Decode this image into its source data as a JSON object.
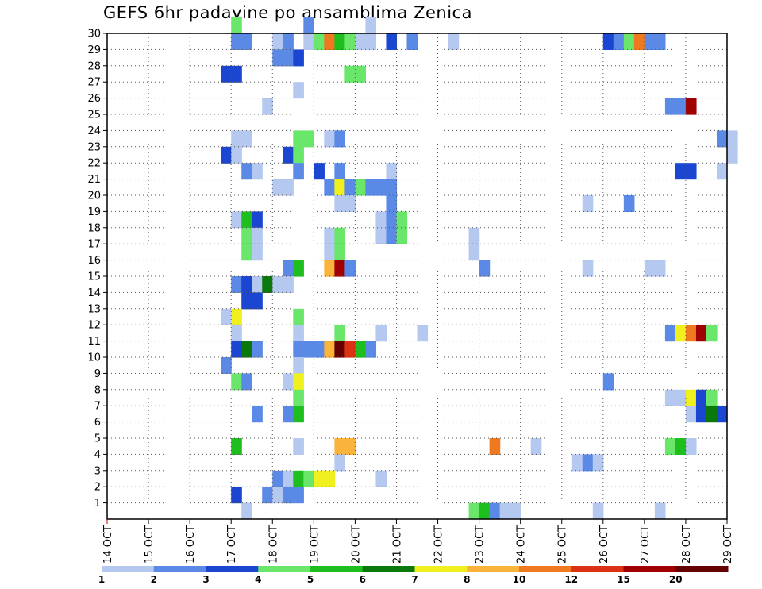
{
  "chart_data": {
    "type": "heatmap",
    "title": "GEFS 6hr padavine po ansamblima Zenica",
    "xlabel": "",
    "ylabel": "",
    "x_ticks": [
      "14 OCT",
      "15 OCT",
      "16 OCT",
      "17 OCT",
      "18 OCT",
      "19 OCT",
      "20 OCT",
      "21 OCT",
      "22 OCT",
      "23 OCT",
      "24 OCT",
      "25 OCT",
      "26 OCT",
      "27 OCT",
      "28 OCT",
      "29 OCT"
    ],
    "y_ticks": [
      "1",
      "2",
      "3",
      "4",
      "5",
      "6",
      "7",
      "8",
      "9",
      "10",
      "11",
      "12",
      "13",
      "14",
      "15",
      "16",
      "17",
      "18",
      "19",
      "20",
      "21",
      "22",
      "23",
      "24",
      "25",
      "26",
      "27",
      "28",
      "29",
      "30"
    ],
    "x_range_days": [
      0,
      15
    ],
    "y_range": [
      0,
      30
    ],
    "step_hours": 6,
    "grid": true,
    "colorbar": {
      "labels": [
        "1",
        "2",
        "3",
        "4",
        "5",
        "6",
        "7",
        "8",
        "10",
        "12",
        "15",
        "20"
      ],
      "colors": [
        "#b4c8f0",
        "#5a8ae6",
        "#1a46d2",
        "#6ae66a",
        "#1ebe1e",
        "#0a780a",
        "#f0f01e",
        "#fab43c",
        "#f0781e",
        "#dc3214",
        "#a00000",
        "#640000"
      ]
    },
    "cells": [
      {
        "m": 30,
        "t": 12,
        "c": 4
      },
      {
        "m": 30,
        "t": 19,
        "c": 2
      },
      {
        "m": 30,
        "t": 25,
        "c": 1
      },
      {
        "m": 29,
        "t": 12,
        "c": 2
      },
      {
        "m": 29,
        "t": 13,
        "c": 2
      },
      {
        "m": 29,
        "t": 16,
        "c": 1
      },
      {
        "m": 29,
        "t": 17,
        "c": 2
      },
      {
        "m": 29,
        "t": 19,
        "c": 1
      },
      {
        "m": 29,
        "t": 20,
        "c": 4
      },
      {
        "m": 29,
        "t": 21,
        "c": 9
      },
      {
        "m": 29,
        "t": 22,
        "c": 5
      },
      {
        "m": 29,
        "t": 23,
        "c": 4
      },
      {
        "m": 29,
        "t": 24,
        "c": 1
      },
      {
        "m": 29,
        "t": 25,
        "c": 1
      },
      {
        "m": 29,
        "t": 27,
        "c": 3
      },
      {
        "m": 29,
        "t": 29,
        "c": 2
      },
      {
        "m": 29,
        "t": 33,
        "c": 1
      },
      {
        "m": 29,
        "t": 48,
        "c": 3
      },
      {
        "m": 29,
        "t": 49,
        "c": 2
      },
      {
        "m": 29,
        "t": 50,
        "c": 4
      },
      {
        "m": 29,
        "t": 51,
        "c": 9
      },
      {
        "m": 29,
        "t": 52,
        "c": 2
      },
      {
        "m": 29,
        "t": 53,
        "c": 2
      },
      {
        "m": 28,
        "t": 16,
        "c": 2
      },
      {
        "m": 28,
        "t": 17,
        "c": 2
      },
      {
        "m": 28,
        "t": 18,
        "c": 3
      },
      {
        "m": 27,
        "t": 11,
        "c": 3
      },
      {
        "m": 27,
        "t": 12,
        "c": 3
      },
      {
        "m": 27,
        "t": 23,
        "c": 4
      },
      {
        "m": 27,
        "t": 24,
        "c": 4
      },
      {
        "m": 26,
        "t": 18,
        "c": 1
      },
      {
        "m": 25,
        "t": 15,
        "c": 1
      },
      {
        "m": 25,
        "t": 54,
        "c": 2
      },
      {
        "m": 25,
        "t": 55,
        "c": 2
      },
      {
        "m": 25,
        "t": 56,
        "c": 11
      },
      {
        "m": 23,
        "t": 12,
        "c": 1
      },
      {
        "m": 23,
        "t": 13,
        "c": 1
      },
      {
        "m": 23,
        "t": 18,
        "c": 4
      },
      {
        "m": 23,
        "t": 19,
        "c": 4
      },
      {
        "m": 23,
        "t": 21,
        "c": 1
      },
      {
        "m": 23,
        "t": 22,
        "c": 2
      },
      {
        "m": 23,
        "t": 59,
        "c": 2
      },
      {
        "m": 23,
        "t": 60,
        "c": 1
      },
      {
        "m": 22,
        "t": 11,
        "c": 3
      },
      {
        "m": 22,
        "t": 12,
        "c": 1
      },
      {
        "m": 22,
        "t": 17,
        "c": 3
      },
      {
        "m": 22,
        "t": 18,
        "c": 4
      },
      {
        "m": 22,
        "t": 60,
        "c": 1
      },
      {
        "m": 21,
        "t": 13,
        "c": 2
      },
      {
        "m": 21,
        "t": 14,
        "c": 1
      },
      {
        "m": 21,
        "t": 18,
        "c": 2
      },
      {
        "m": 21,
        "t": 20,
        "c": 3
      },
      {
        "m": 21,
        "t": 22,
        "c": 2
      },
      {
        "m": 21,
        "t": 27,
        "c": 1
      },
      {
        "m": 21,
        "t": 55,
        "c": 3
      },
      {
        "m": 21,
        "t": 56,
        "c": 3
      },
      {
        "m": 21,
        "t": 59,
        "c": 1
      },
      {
        "m": 20,
        "t": 16,
        "c": 1
      },
      {
        "m": 20,
        "t": 17,
        "c": 1
      },
      {
        "m": 20,
        "t": 21,
        "c": 2
      },
      {
        "m": 20,
        "t": 22,
        "c": 7
      },
      {
        "m": 20,
        "t": 23,
        "c": 2
      },
      {
        "m": 20,
        "t": 24,
        "c": 4
      },
      {
        "m": 20,
        "t": 25,
        "c": 2
      },
      {
        "m": 20,
        "t": 26,
        "c": 2
      },
      {
        "m": 20,
        "t": 27,
        "c": 2
      },
      {
        "m": 19,
        "t": 22,
        "c": 1
      },
      {
        "m": 19,
        "t": 23,
        "c": 1
      },
      {
        "m": 19,
        "t": 27,
        "c": 2
      },
      {
        "m": 19,
        "t": 46,
        "c": 1
      },
      {
        "m": 19,
        "t": 50,
        "c": 2
      },
      {
        "m": 18,
        "t": 12,
        "c": 1
      },
      {
        "m": 18,
        "t": 13,
        "c": 5
      },
      {
        "m": 18,
        "t": 14,
        "c": 3
      },
      {
        "m": 18,
        "t": 26,
        "c": 1
      },
      {
        "m": 18,
        "t": 27,
        "c": 2
      },
      {
        "m": 18,
        "t": 28,
        "c": 4
      },
      {
        "m": 17,
        "t": 13,
        "c": 4
      },
      {
        "m": 17,
        "t": 14,
        "c": 1
      },
      {
        "m": 17,
        "t": 21,
        "c": 1
      },
      {
        "m": 17,
        "t": 22,
        "c": 4
      },
      {
        "m": 17,
        "t": 26,
        "c": 1
      },
      {
        "m": 17,
        "t": 27,
        "c": 2
      },
      {
        "m": 17,
        "t": 28,
        "c": 4
      },
      {
        "m": 17,
        "t": 35,
        "c": 1
      },
      {
        "m": 16,
        "t": 13,
        "c": 4
      },
      {
        "m": 16,
        "t": 14,
        "c": 1
      },
      {
        "m": 16,
        "t": 21,
        "c": 1
      },
      {
        "m": 16,
        "t": 22,
        "c": 4
      },
      {
        "m": 16,
        "t": 35,
        "c": 1
      },
      {
        "m": 15,
        "t": 17,
        "c": 2
      },
      {
        "m": 15,
        "t": 18,
        "c": 5
      },
      {
        "m": 15,
        "t": 21,
        "c": 8
      },
      {
        "m": 15,
        "t": 22,
        "c": 11
      },
      {
        "m": 15,
        "t": 23,
        "c": 2
      },
      {
        "m": 15,
        "t": 36,
        "c": 2
      },
      {
        "m": 15,
        "t": 46,
        "c": 1
      },
      {
        "m": 15,
        "t": 52,
        "c": 1
      },
      {
        "m": 15,
        "t": 53,
        "c": 1
      },
      {
        "m": 14,
        "t": 12,
        "c": 2
      },
      {
        "m": 14,
        "t": 13,
        "c": 3
      },
      {
        "m": 14,
        "t": 14,
        "c": 1
      },
      {
        "m": 14,
        "t": 15,
        "c": 6
      },
      {
        "m": 14,
        "t": 16,
        "c": 1
      },
      {
        "m": 14,
        "t": 17,
        "c": 1
      },
      {
        "m": 13,
        "t": 13,
        "c": 3
      },
      {
        "m": 13,
        "t": 14,
        "c": 3
      },
      {
        "m": 12,
        "t": 11,
        "c": 1
      },
      {
        "m": 12,
        "t": 12,
        "c": 7
      },
      {
        "m": 12,
        "t": 18,
        "c": 4
      },
      {
        "m": 11,
        "t": 12,
        "c": 1
      },
      {
        "m": 11,
        "t": 18,
        "c": 1
      },
      {
        "m": 11,
        "t": 22,
        "c": 4
      },
      {
        "m": 11,
        "t": 26,
        "c": 1
      },
      {
        "m": 11,
        "t": 30,
        "c": 1
      },
      {
        "m": 11,
        "t": 54,
        "c": 2
      },
      {
        "m": 11,
        "t": 55,
        "c": 7
      },
      {
        "m": 11,
        "t": 56,
        "c": 9
      },
      {
        "m": 11,
        "t": 57,
        "c": 11
      },
      {
        "m": 11,
        "t": 58,
        "c": 4
      },
      {
        "m": 10,
        "t": 12,
        "c": 3
      },
      {
        "m": 10,
        "t": 13,
        "c": 6
      },
      {
        "m": 10,
        "t": 14,
        "c": 2
      },
      {
        "m": 10,
        "t": 18,
        "c": 2
      },
      {
        "m": 10,
        "t": 19,
        "c": 2
      },
      {
        "m": 10,
        "t": 20,
        "c": 2
      },
      {
        "m": 10,
        "t": 21,
        "c": 8
      },
      {
        "m": 10,
        "t": 22,
        "c": 12
      },
      {
        "m": 10,
        "t": 23,
        "c": 10
      },
      {
        "m": 10,
        "t": 24,
        "c": 5
      },
      {
        "m": 10,
        "t": 25,
        "c": 2
      },
      {
        "m": 9,
        "t": 11,
        "c": 2
      },
      {
        "m": 9,
        "t": 18,
        "c": 1
      },
      {
        "m": 8,
        "t": 12,
        "c": 4
      },
      {
        "m": 8,
        "t": 13,
        "c": 2
      },
      {
        "m": 8,
        "t": 17,
        "c": 1
      },
      {
        "m": 8,
        "t": 18,
        "c": 7
      },
      {
        "m": 8,
        "t": 48,
        "c": 2
      },
      {
        "m": 7,
        "t": 18,
        "c": 4
      },
      {
        "m": 7,
        "t": 54,
        "c": 1
      },
      {
        "m": 7,
        "t": 55,
        "c": 1
      },
      {
        "m": 7,
        "t": 56,
        "c": 7
      },
      {
        "m": 7,
        "t": 57,
        "c": 3
      },
      {
        "m": 7,
        "t": 58,
        "c": 4
      },
      {
        "m": 6,
        "t": 14,
        "c": 2
      },
      {
        "m": 6,
        "t": 17,
        "c": 2
      },
      {
        "m": 6,
        "t": 18,
        "c": 5
      },
      {
        "m": 6,
        "t": 56,
        "c": 1
      },
      {
        "m": 6,
        "t": 57,
        "c": 3
      },
      {
        "m": 6,
        "t": 58,
        "c": 6
      },
      {
        "m": 6,
        "t": 59,
        "c": 3
      },
      {
        "m": 4,
        "t": 12,
        "c": 5
      },
      {
        "m": 4,
        "t": 18,
        "c": 1
      },
      {
        "m": 4,
        "t": 22,
        "c": 8
      },
      {
        "m": 4,
        "t": 23,
        "c": 8
      },
      {
        "m": 4,
        "t": 37,
        "c": 9
      },
      {
        "m": 4,
        "t": 41,
        "c": 1
      },
      {
        "m": 4,
        "t": 54,
        "c": 4
      },
      {
        "m": 4,
        "t": 55,
        "c": 5
      },
      {
        "m": 4,
        "t": 56,
        "c": 1
      },
      {
        "m": 3,
        "t": 22,
        "c": 1
      },
      {
        "m": 3,
        "t": 45,
        "c": 1
      },
      {
        "m": 3,
        "t": 46,
        "c": 2
      },
      {
        "m": 3,
        "t": 47,
        "c": 1
      },
      {
        "m": 2,
        "t": 16,
        "c": 2
      },
      {
        "m": 2,
        "t": 17,
        "c": 1
      },
      {
        "m": 2,
        "t": 18,
        "c": 5
      },
      {
        "m": 2,
        "t": 19,
        "c": 4
      },
      {
        "m": 2,
        "t": 20,
        "c": 7
      },
      {
        "m": 2,
        "t": 21,
        "c": 7
      },
      {
        "m": 2,
        "t": 26,
        "c": 1
      },
      {
        "m": 1,
        "t": 12,
        "c": 3
      },
      {
        "m": 1,
        "t": 15,
        "c": 2
      },
      {
        "m": 1,
        "t": 16,
        "c": 1
      },
      {
        "m": 1,
        "t": 17,
        "c": 2
      },
      {
        "m": 1,
        "t": 18,
        "c": 2
      },
      {
        "m": 0,
        "t": 13,
        "c": 1
      },
      {
        "m": 0,
        "t": 35,
        "c": 4
      },
      {
        "m": 0,
        "t": 36,
        "c": 5
      },
      {
        "m": 0,
        "t": 37,
        "c": 2
      },
      {
        "m": 0,
        "t": 38,
        "c": 1
      },
      {
        "m": 0,
        "t": 39,
        "c": 1
      },
      {
        "m": 0,
        "t": 47,
        "c": 1
      },
      {
        "m": 0,
        "t": 53,
        "c": 1
      }
    ]
  }
}
